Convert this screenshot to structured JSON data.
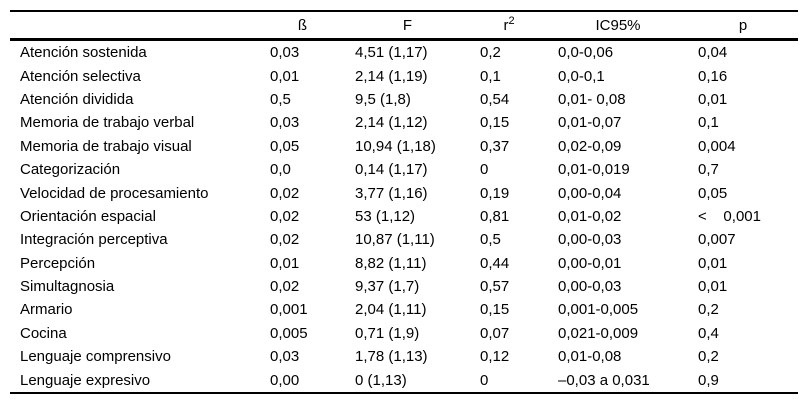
{
  "table": {
    "header": {
      "measure": "",
      "beta": "ß",
      "f": "F",
      "r2_base": "r",
      "r2_sup": "2",
      "ic95": "IC95%",
      "p": "p"
    },
    "rows": [
      {
        "measure": "Atención sostenida",
        "beta": "0,03",
        "f": "4,51 (1,17)",
        "r2": "0,2",
        "ic95": "0,0-0,06",
        "p": "0,04"
      },
      {
        "measure": "Atención selectiva",
        "beta": "0,01",
        "f": "2,14 (1,19)",
        "r2": "0,1",
        "ic95": "0,0-0,1",
        "p": "0,16"
      },
      {
        "measure": "Atención dividida",
        "beta": "0,5",
        "f": "9,5 (1,8)",
        "r2": "0,54",
        "ic95": "0,01- 0,08",
        "p": "0,01"
      },
      {
        "measure": "Memoria de trabajo verbal",
        "beta": "0,03",
        "f": "2,14 (1,12)",
        "r2": "0,15",
        "ic95": "0,01-0,07",
        "p": "0,1"
      },
      {
        "measure": "Memoria de trabajo visual",
        "beta": "0,05",
        "f": "10,94 (1,18)",
        "r2": "0,37",
        "ic95": "0,02-0,09",
        "p": "0,004"
      },
      {
        "measure": "Categorización",
        "beta": "0,0",
        "f": "0,14 (1,17)",
        "r2": "0",
        "ic95": "0,01-0,019",
        "p": "0,7"
      },
      {
        "measure": "Velocidad de procesamiento",
        "beta": "0,02",
        "f": "3,77 (1,16)",
        "r2": "0,19",
        "ic95": "0,00-0,04",
        "p": "0,05"
      },
      {
        "measure": "Orientación espacial",
        "beta": "0,02",
        "f": "53 (1,12)",
        "r2": "0,81",
        "ic95": "0,01-0,02",
        "p": "<    0,001"
      },
      {
        "measure": "Integración perceptiva",
        "beta": "0,02",
        "f": "10,87 (1,11)",
        "r2": "0,5",
        "ic95": "0,00-0,03",
        "p": "0,007"
      },
      {
        "measure": "Percepción",
        "beta": "0,01",
        "f": "8,82 (1,11)",
        "r2": "0,44",
        "ic95": "0,00-0,01",
        "p": "0,01"
      },
      {
        "measure": "Simultagnosia",
        "beta": "0,02",
        "f": "9,37 (1,7)",
        "r2": "0,57",
        "ic95": "0,00-0,03",
        "p": "0,01"
      },
      {
        "measure": "Armario",
        "beta": "0,001",
        "f": "2,04 (1,11)",
        "r2": "0,15",
        "ic95": "0,001-0,005",
        "p": "0,2"
      },
      {
        "measure": "Cocina",
        "beta": "0,005",
        "f": "0,71 (1,9)",
        "r2": "0,07",
        "ic95": "0,021-0,009",
        "p": "0,4"
      },
      {
        "measure": "Lenguaje comprensivo",
        "beta": "0,03",
        "f": "1,78 (1,13)",
        "r2": "0,12",
        "ic95": "0,01-0,08",
        "p": "0,2"
      },
      {
        "measure": "Lenguaje expresivo",
        "beta": "0,00",
        "f": "0 (1,13)",
        "r2": "0",
        "ic95": "–0,03 a 0,031",
        "p": "0,9"
      }
    ],
    "colors": {
      "text": "#000000",
      "background": "#ffffff",
      "rule": "#000000"
    }
  }
}
